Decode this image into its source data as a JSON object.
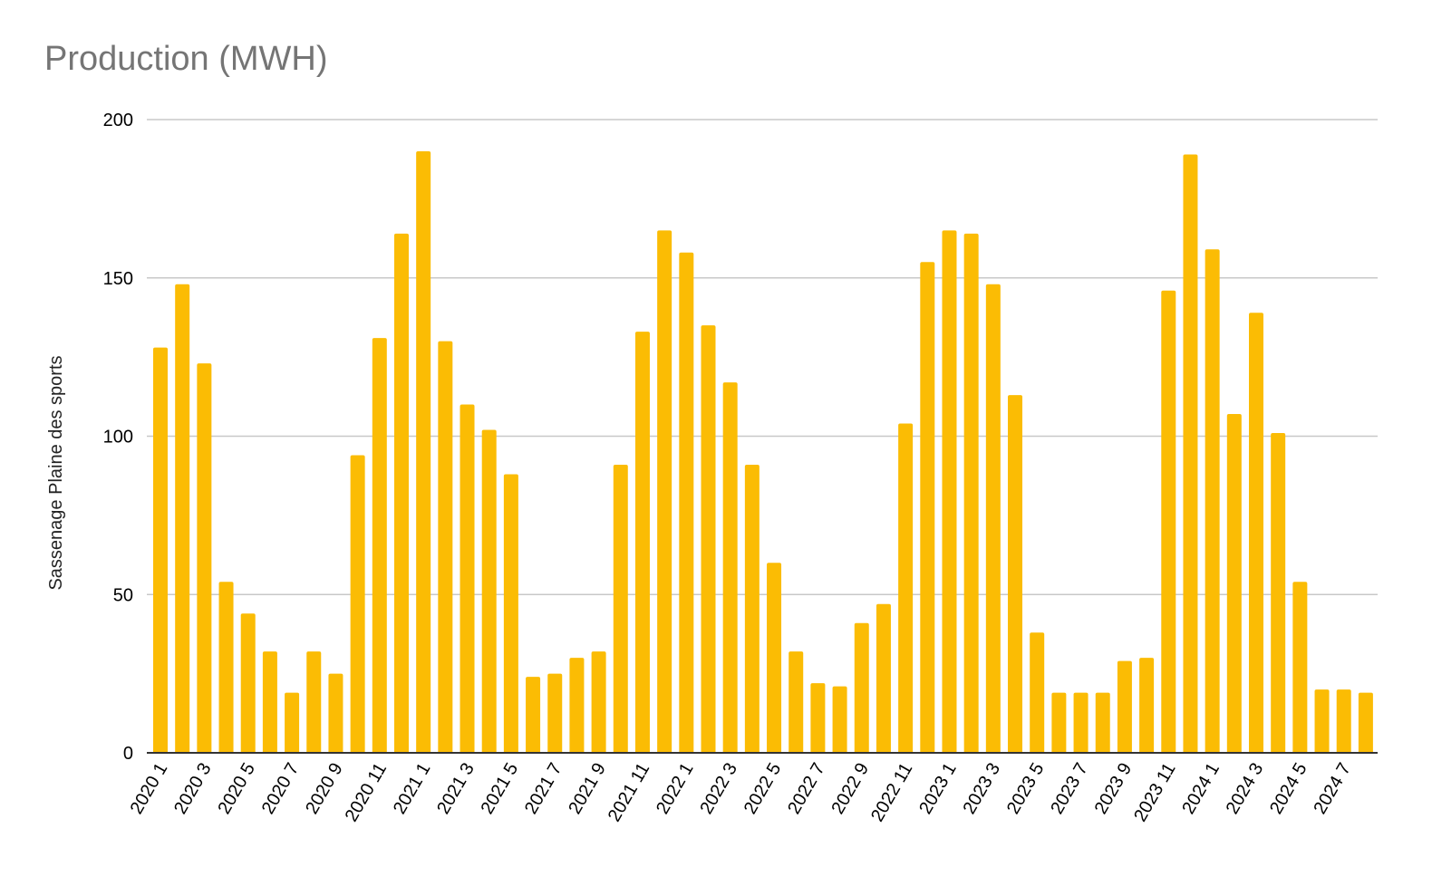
{
  "chart_data": {
    "type": "bar",
    "title": "Production (MWH)",
    "xlabel": "",
    "ylabel": "Sassenage Plaine des sports",
    "ylim": [
      0,
      200
    ],
    "yticks": [
      0,
      50,
      100,
      150,
      200
    ],
    "grid": true,
    "legend": "none",
    "bar_color": "#FBBC04",
    "categories": [
      "2020 1",
      "2020 2",
      "2020 3",
      "2020 4",
      "2020 5",
      "2020 6",
      "2020 7",
      "2020 8",
      "2020 9",
      "2020 10",
      "2020 11",
      "2020 12",
      "2021 1",
      "2021 2",
      "2021 3",
      "2021 4",
      "2021 5",
      "2021 6",
      "2021 7",
      "2021 8",
      "2021 9",
      "2021 10",
      "2021 11",
      "2021 12",
      "2022 1",
      "2022 2",
      "2022 3",
      "2022 4",
      "2022 5",
      "2022 6",
      "2022 7",
      "2022 8",
      "2022 9",
      "2022 10",
      "2022 11",
      "2022 12",
      "2023 1",
      "2023 2",
      "2023 3",
      "2023 4",
      "2023 5",
      "2023 6",
      "2023 7",
      "2023 8",
      "2023 9",
      "2023 10",
      "2023 11",
      "2023 12",
      "2024 1",
      "2024 2",
      "2024 3",
      "2024 4",
      "2024 5",
      "2024 6",
      "2024 7",
      "2024 8"
    ],
    "tick_labels_shown": [
      "2020 1",
      "2020 3",
      "2020 5",
      "2020 7",
      "2020 9",
      "2020 11",
      "2021 1",
      "2021 3",
      "2021 5",
      "2021 7",
      "2021 9",
      "2021 11",
      "2022 1",
      "2022 3",
      "2022 5",
      "2022 7",
      "2022 9",
      "2022 11",
      "2023 1",
      "2023 3",
      "2023 5",
      "2023 7",
      "2023 9",
      "2023 11",
      "2024 1",
      "2024 3",
      "2024 5",
      "2024 7"
    ],
    "values": [
      128,
      148,
      123,
      54,
      44,
      32,
      19,
      32,
      25,
      94,
      131,
      164,
      190,
      130,
      110,
      102,
      88,
      24,
      25,
      30,
      32,
      91,
      133,
      165,
      158,
      135,
      117,
      91,
      60,
      32,
      22,
      21,
      41,
      47,
      104,
      155,
      165,
      164,
      148,
      113,
      38,
      19,
      19,
      19,
      29,
      30,
      146,
      189,
      159,
      107,
      139,
      101,
      54,
      20,
      20,
      19
    ]
  }
}
